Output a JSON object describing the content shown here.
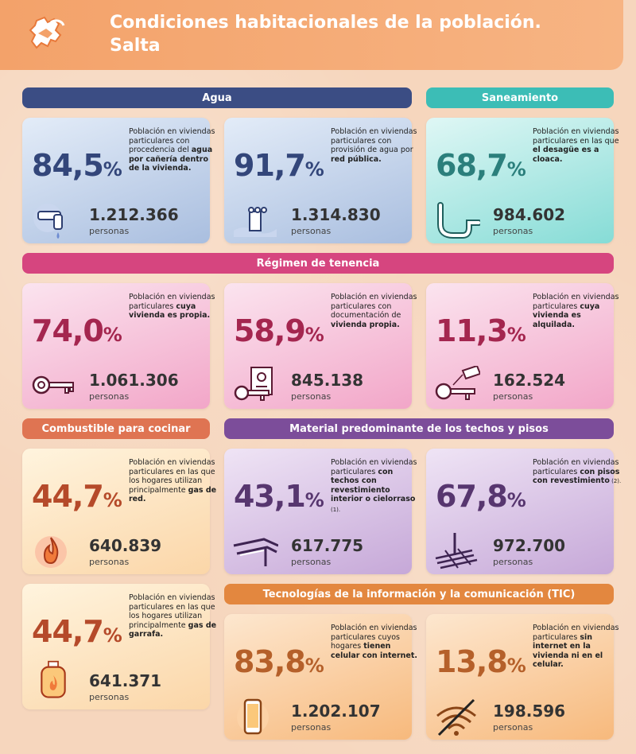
{
  "header": {
    "title_line1": "Condiciones habitacionales de la población.",
    "title_line2": "Salta"
  },
  "sections": {
    "agua": "Agua",
    "saneamiento": "Saneamiento",
    "tenencia": "Régimen de tenencia",
    "combustible": "Combustible para cocinar",
    "material": "Material predominante de los techos y pisos",
    "tic": "Tecnologías de la información y la comunicación (TIC)"
  },
  "cards": {
    "agua_canieria": {
      "pct": "84,5",
      "sign": "%",
      "desc_plain": "Población en viviendas particulares con procedencia del ",
      "desc_bold": "agua por cañería dentro de la vivienda.",
      "number": "1.212.366",
      "unit": "personas",
      "icon": "faucet-icon"
    },
    "agua_red": {
      "pct": "91,7",
      "sign": "%",
      "desc_plain": "Población en viviendas particulares con provisión de agua por ",
      "desc_bold": "red pública.",
      "number": "1.314.830",
      "unit": "personas",
      "icon": "water-network-icon"
    },
    "cloaca": {
      "pct": "68,7",
      "sign": "%",
      "desc_plain": "Población en viviendas particulares en las que ",
      "desc_bold": "el desagüe es a cloaca.",
      "number": "984.602",
      "unit": "personas",
      "icon": "pipe-icon"
    },
    "propia": {
      "pct": "74,0",
      "sign": "%",
      "desc_plain": "Población en viviendas particulares ",
      "desc_bold": "cuya vivienda es propia.",
      "number": "1.061.306",
      "unit": "personas",
      "icon": "key-icon"
    },
    "documentacion": {
      "pct": "58,9",
      "sign": "%",
      "desc_plain": "Población en viviendas particulares con documentación de ",
      "desc_bold": "vivienda propia.",
      "number": "845.138",
      "unit": "personas",
      "icon": "key-document-icon"
    },
    "alquilada": {
      "pct": "11,3",
      "sign": "%",
      "desc_plain": "Población en viviendas particulares ",
      "desc_bold": "cuya vivienda es alquilada.",
      "number": "162.524",
      "unit": "personas",
      "icon": "key-tag-icon"
    },
    "gas_red": {
      "pct": "44,7",
      "sign": "%",
      "desc_plain": "Población en viviendas particulares en las que los hogares utilizan principalmente ",
      "desc_bold": "gas de red.",
      "number": "640.839",
      "unit": "personas",
      "icon": "flame-icon"
    },
    "gas_garrafa": {
      "pct": "44,7",
      "sign": "%",
      "desc_plain": "Población en viviendas particulares en las que los hogares utilizan principalmente ",
      "desc_bold": "gas de garrafa.",
      "number": "641.371",
      "unit": "personas",
      "icon": "gas-cylinder-icon"
    },
    "techos": {
      "pct": "43,1",
      "sign": "%",
      "desc_plain": "Población en viviendas particulares ",
      "desc_bold": "con techos con revestimiento interior o cielorraso",
      "note": " (1).",
      "number": "617.775",
      "unit": "personas",
      "icon": "roof-icon"
    },
    "pisos": {
      "pct": "67,8",
      "sign": "%",
      "desc_plain": "Población en viviendas particulares ",
      "desc_bold": "con pisos con revestimiento",
      "note": " (2).",
      "number": "972.700",
      "unit": "personas",
      "icon": "floor-tiles-icon"
    },
    "celular": {
      "pct": "83,8",
      "sign": "%",
      "desc_plain": "Población en viviendas particulares cuyos hogares ",
      "desc_bold": "tienen celular con internet.",
      "number": "1.202.107",
      "unit": "personas",
      "icon": "smartphone-icon"
    },
    "sin_internet": {
      "pct": "13,8",
      "sign": "%",
      "desc_plain": "Población en viviendas particulares ",
      "desc_bold": "sin internet en la vivienda ni en el celular.",
      "number": "198.596",
      "unit": "personas",
      "icon": "no-wifi-icon"
    }
  },
  "colors": {
    "blue": "#33467a",
    "teal": "#2b7f7c",
    "pink": "#a4264f",
    "peach": "#b54a2a",
    "purple": "#57366f",
    "orange": "#b5602a"
  }
}
